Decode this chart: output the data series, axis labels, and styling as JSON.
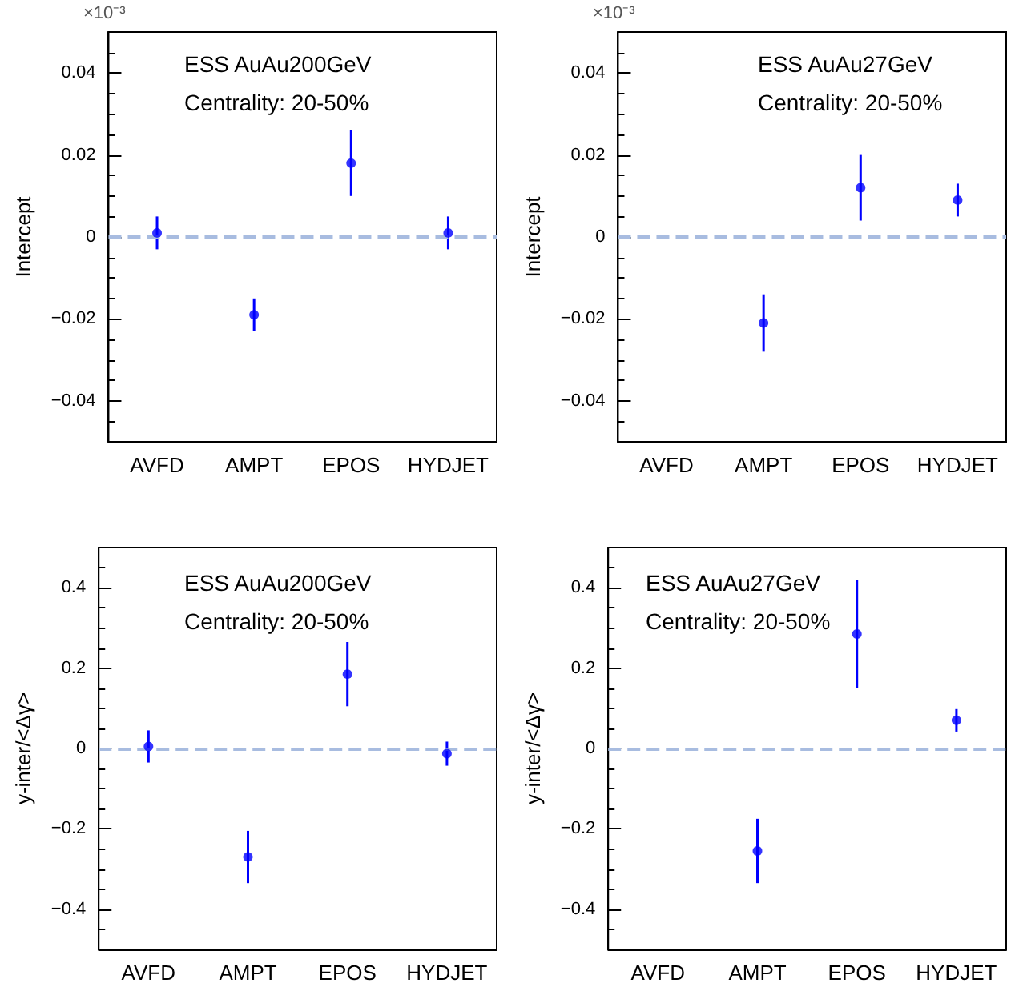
{
  "chart_data": [
    {
      "type": "scatter",
      "title": "ESS AuAu200GeV",
      "subtitle": "Centrality: 20-50%",
      "ylabel": "Intercept",
      "annotations": [
        "×10⁻³"
      ],
      "categories": [
        "AVFD",
        "AMPT",
        "EPOS",
        "HYDJET"
      ],
      "series": [
        {
          "color": "#0000ff",
          "values": [
            0.001,
            -0.019,
            0.018,
            0.001
          ],
          "errors": [
            0.004,
            0.004,
            0.008,
            0.004
          ]
        }
      ],
      "ylim": [
        -0.05,
        0.05
      ],
      "yticks": [
        -0.04,
        -0.02,
        0,
        0.02,
        0.04
      ],
      "grid": false,
      "marker": "circle",
      "ref_lines": [
        {
          "axis": "y",
          "value": 0,
          "color": "#a8bce0",
          "line_style": "dashed"
        }
      ]
    },
    {
      "type": "scatter",
      "title": "ESS AuAu27GeV",
      "subtitle": "Centrality: 20-50%",
      "ylabel": "Intercept",
      "annotations": [
        "×10⁻³"
      ],
      "categories": [
        "AVFD",
        "AMPT",
        "EPOS",
        "HYDJET"
      ],
      "series": [
        {
          "color": "#0000ff",
          "values": [
            null,
            -0.021,
            0.012,
            0.009
          ],
          "errors": [
            null,
            0.007,
            0.008,
            0.004
          ]
        }
      ],
      "ylim": [
        -0.05,
        0.05
      ],
      "yticks": [
        -0.04,
        -0.02,
        0,
        0.02,
        0.04
      ],
      "grid": false,
      "marker": "circle",
      "ref_lines": [
        {
          "axis": "y",
          "value": 0,
          "color": "#a8bce0",
          "line_style": "dashed"
        }
      ]
    },
    {
      "type": "scatter",
      "title": "ESS AuAu200GeV",
      "subtitle": "Centrality: 20-50%",
      "ylabel": "y-inter/<Δγ>",
      "categories": [
        "AVFD",
        "AMPT",
        "EPOS",
        "HYDJET"
      ],
      "series": [
        {
          "color": "#0000ff",
          "values": [
            0.005,
            -0.27,
            0.185,
            -0.013
          ],
          "errors": [
            0.04,
            0.065,
            0.08,
            0.03
          ]
        }
      ],
      "ylim": [
        -0.5,
        0.5
      ],
      "yticks": [
        -0.4,
        -0.2,
        0,
        0.2,
        0.4
      ],
      "grid": false,
      "marker": "circle",
      "ref_lines": [
        {
          "axis": "y",
          "value": 0,
          "color": "#a8bce0",
          "line_style": "dashed"
        }
      ]
    },
    {
      "type": "scatter",
      "title": "ESS AuAu27GeV",
      "subtitle": "Centrality: 20-50%",
      "ylabel": "y-inter/<Δγ>",
      "categories": [
        "AVFD",
        "AMPT",
        "EPOS",
        "HYDJET"
      ],
      "series": [
        {
          "color": "#0000ff",
          "values": [
            null,
            -0.255,
            0.285,
            0.07
          ],
          "errors": [
            null,
            0.08,
            0.135,
            0.028
          ]
        }
      ],
      "ylim": [
        -0.5,
        0.5
      ],
      "yticks": [
        -0.4,
        -0.2,
        0,
        0.2,
        0.4
      ],
      "grid": false,
      "marker": "circle",
      "ref_lines": [
        {
          "axis": "y",
          "value": 0,
          "color": "#a8bce0",
          "line_style": "dashed"
        }
      ]
    }
  ]
}
